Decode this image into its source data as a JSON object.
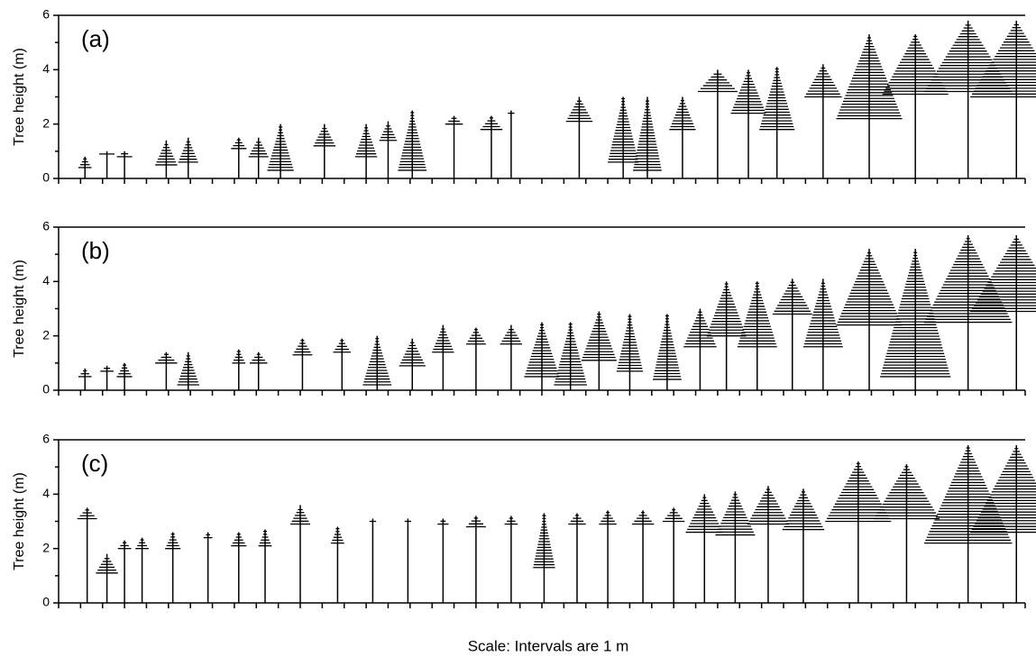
{
  "caption": "Scale: Intervals are 1 m",
  "chart_data": [
    {
      "type": "tree-profile",
      "label": "(a)",
      "y_label": "Tree height (m)",
      "ylim": [
        0,
        6
      ],
      "yticks": [
        0,
        2,
        4,
        6
      ],
      "yminor_ticks": [
        1,
        3,
        5
      ],
      "xlim": [
        0,
        44
      ],
      "xticks": [
        0,
        1,
        2,
        3,
        4,
        5,
        6,
        7,
        8,
        9,
        10,
        11,
        12,
        13,
        14,
        15,
        16,
        17,
        18,
        19,
        20,
        21,
        22,
        23,
        24,
        25,
        26,
        27,
        28,
        29,
        30,
        31,
        32,
        33,
        34,
        35,
        36,
        37,
        38,
        39,
        40,
        41,
        42,
        43,
        44
      ],
      "trees": [
        {
          "x": 1.2,
          "height": 0.8,
          "crown_base": 0.4,
          "crown_width": 0.6
        },
        {
          "x": 2.2,
          "height": 1.0,
          "crown_base": 0.9,
          "crown_width": 0.7
        },
        {
          "x": 3.0,
          "height": 1.0,
          "crown_base": 0.8,
          "crown_width": 0.7
        },
        {
          "x": 4.9,
          "height": 1.4,
          "crown_base": 0.5,
          "crown_width": 1.0
        },
        {
          "x": 5.9,
          "height": 1.5,
          "crown_base": 0.6,
          "crown_width": 0.9
        },
        {
          "x": 8.2,
          "height": 1.5,
          "crown_base": 1.1,
          "crown_width": 0.7
        },
        {
          "x": 9.1,
          "height": 1.5,
          "crown_base": 0.8,
          "crown_width": 0.9
        },
        {
          "x": 10.1,
          "height": 2.0,
          "crown_base": 0.3,
          "crown_width": 1.2
        },
        {
          "x": 12.1,
          "height": 2.0,
          "crown_base": 1.2,
          "crown_width": 1.0
        },
        {
          "x": 14.0,
          "height": 2.0,
          "crown_base": 0.8,
          "crown_width": 1.0
        },
        {
          "x": 15.0,
          "height": 2.1,
          "crown_base": 1.4,
          "crown_width": 0.8
        },
        {
          "x": 16.1,
          "height": 2.5,
          "crown_base": 0.3,
          "crown_width": 1.3
        },
        {
          "x": 18.0,
          "height": 2.3,
          "crown_base": 2.0,
          "crown_width": 0.8
        },
        {
          "x": 19.7,
          "height": 2.3,
          "crown_base": 1.8,
          "crown_width": 1.0
        },
        {
          "x": 20.6,
          "height": 2.5,
          "crown_base": 2.4,
          "crown_width": 0.3
        },
        {
          "x": 23.7,
          "height": 3.0,
          "crown_base": 2.1,
          "crown_width": 1.2
        },
        {
          "x": 25.7,
          "height": 3.0,
          "crown_base": 0.6,
          "crown_width": 1.4
        },
        {
          "x": 26.8,
          "height": 3.0,
          "crown_base": 0.3,
          "crown_width": 1.3
        },
        {
          "x": 28.4,
          "height": 3.0,
          "crown_base": 1.8,
          "crown_width": 1.2
        },
        {
          "x": 30.0,
          "height": 4.0,
          "crown_base": 3.2,
          "crown_width": 1.8
        },
        {
          "x": 31.4,
          "height": 4.0,
          "crown_base": 2.4,
          "crown_width": 1.6
        },
        {
          "x": 32.7,
          "height": 4.1,
          "crown_base": 1.8,
          "crown_width": 1.6
        },
        {
          "x": 34.8,
          "height": 4.2,
          "crown_base": 3.0,
          "crown_width": 1.7
        },
        {
          "x": 36.9,
          "height": 5.3,
          "crown_base": 2.2,
          "crown_width": 3.0
        },
        {
          "x": 39.0,
          "height": 5.3,
          "crown_base": 3.1,
          "crown_width": 3.0
        },
        {
          "x": 41.4,
          "height": 5.8,
          "crown_base": 3.2,
          "crown_width": 4.0
        },
        {
          "x": 43.6,
          "height": 5.8,
          "crown_base": 3.0,
          "crown_width": 4.2
        }
      ]
    },
    {
      "type": "tree-profile",
      "label": "(b)",
      "y_label": "Tree height (m)",
      "ylim": [
        0,
        6
      ],
      "yticks": [
        0,
        2,
        4,
        6
      ],
      "yminor_ticks": [
        1,
        3,
        5
      ],
      "xlim": [
        0,
        44
      ],
      "xticks": [
        0,
        1,
        2,
        3,
        4,
        5,
        6,
        7,
        8,
        9,
        10,
        11,
        12,
        13,
        14,
        15,
        16,
        17,
        18,
        19,
        20,
        21,
        22,
        23,
        24,
        25,
        26,
        27,
        28,
        29,
        30,
        31,
        32,
        33,
        34,
        35,
        36,
        37,
        38,
        39,
        40,
        41,
        42,
        43,
        44
      ],
      "trees": [
        {
          "x": 1.2,
          "height": 0.8,
          "crown_base": 0.5,
          "crown_width": 0.6
        },
        {
          "x": 2.2,
          "height": 0.9,
          "crown_base": 0.7,
          "crown_width": 0.6
        },
        {
          "x": 3.0,
          "height": 1.0,
          "crown_base": 0.5,
          "crown_width": 0.7
        },
        {
          "x": 4.9,
          "height": 1.4,
          "crown_base": 1.0,
          "crown_width": 1.0
        },
        {
          "x": 5.9,
          "height": 1.4,
          "crown_base": 0.2,
          "crown_width": 1.0
        },
        {
          "x": 8.2,
          "height": 1.5,
          "crown_base": 1.0,
          "crown_width": 0.6
        },
        {
          "x": 9.1,
          "height": 1.4,
          "crown_base": 1.0,
          "crown_width": 0.8
        },
        {
          "x": 11.1,
          "height": 1.9,
          "crown_base": 1.3,
          "crown_width": 0.9
        },
        {
          "x": 12.9,
          "height": 1.9,
          "crown_base": 1.4,
          "crown_width": 0.8
        },
        {
          "x": 14.5,
          "height": 2.0,
          "crown_base": 0.2,
          "crown_width": 1.3
        },
        {
          "x": 16.1,
          "height": 1.9,
          "crown_base": 0.9,
          "crown_width": 1.2
        },
        {
          "x": 17.5,
          "height": 2.4,
          "crown_base": 1.4,
          "crown_width": 1.0
        },
        {
          "x": 19.0,
          "height": 2.3,
          "crown_base": 1.7,
          "crown_width": 0.9
        },
        {
          "x": 20.6,
          "height": 2.4,
          "crown_base": 1.7,
          "crown_width": 1.0
        },
        {
          "x": 22.0,
          "height": 2.5,
          "crown_base": 0.5,
          "crown_width": 1.6
        },
        {
          "x": 23.3,
          "height": 2.5,
          "crown_base": 0.2,
          "crown_width": 1.5
        },
        {
          "x": 24.6,
          "height": 2.9,
          "crown_base": 1.1,
          "crown_width": 1.6
        },
        {
          "x": 26.0,
          "height": 2.8,
          "crown_base": 0.7,
          "crown_width": 1.2
        },
        {
          "x": 27.7,
          "height": 2.8,
          "crown_base": 0.4,
          "crown_width": 1.3
        },
        {
          "x": 29.2,
          "height": 3.0,
          "crown_base": 1.6,
          "crown_width": 1.5
        },
        {
          "x": 30.4,
          "height": 4.0,
          "crown_base": 2.0,
          "crown_width": 1.8
        },
        {
          "x": 31.8,
          "height": 4.0,
          "crown_base": 1.6,
          "crown_width": 1.8
        },
        {
          "x": 33.4,
          "height": 4.1,
          "crown_base": 2.8,
          "crown_width": 1.8
        },
        {
          "x": 34.8,
          "height": 4.1,
          "crown_base": 1.6,
          "crown_width": 1.8
        },
        {
          "x": 36.9,
          "height": 5.2,
          "crown_base": 2.4,
          "crown_width": 3.0
        },
        {
          "x": 39.0,
          "height": 5.2,
          "crown_base": 0.5,
          "crown_width": 3.2
        },
        {
          "x": 41.4,
          "height": 5.7,
          "crown_base": 2.5,
          "crown_width": 4.0
        },
        {
          "x": 43.6,
          "height": 5.7,
          "crown_base": 2.9,
          "crown_width": 4.2
        }
      ]
    },
    {
      "type": "tree-profile",
      "label": "(c)",
      "y_label": "Tree height (m)",
      "ylim": [
        0,
        6
      ],
      "yticks": [
        0,
        2,
        4,
        6
      ],
      "yminor_ticks": [
        1,
        3,
        5
      ],
      "xlim": [
        0,
        44
      ],
      "xticks": [
        0,
        1,
        2,
        3,
        4,
        5,
        6,
        7,
        8,
        9,
        10,
        11,
        12,
        13,
        14,
        15,
        16,
        17,
        18,
        19,
        20,
        21,
        22,
        23,
        24,
        25,
        26,
        27,
        28,
        29,
        30,
        31,
        32,
        33,
        34,
        35,
        36,
        37,
        38,
        39,
        40,
        41,
        42,
        43,
        44
      ],
      "trees": [
        {
          "x": 1.3,
          "height": 3.5,
          "crown_base": 3.1,
          "crown_width": 0.9
        },
        {
          "x": 2.2,
          "height": 1.8,
          "crown_base": 1.1,
          "crown_width": 1.0
        },
        {
          "x": 3.0,
          "height": 2.3,
          "crown_base": 2.0,
          "crown_width": 0.6
        },
        {
          "x": 3.8,
          "height": 2.4,
          "crown_base": 2.0,
          "crown_width": 0.6
        },
        {
          "x": 5.2,
          "height": 2.6,
          "crown_base": 2.0,
          "crown_width": 0.7
        },
        {
          "x": 6.8,
          "height": 2.6,
          "crown_base": 2.4,
          "crown_width": 0.4
        },
        {
          "x": 8.2,
          "height": 2.6,
          "crown_base": 2.1,
          "crown_width": 0.7
        },
        {
          "x": 9.4,
          "height": 2.7,
          "crown_base": 2.1,
          "crown_width": 0.6
        },
        {
          "x": 11.0,
          "height": 3.6,
          "crown_base": 2.9,
          "crown_width": 0.9
        },
        {
          "x": 12.7,
          "height": 2.8,
          "crown_base": 2.2,
          "crown_width": 0.6
        },
        {
          "x": 14.3,
          "height": 3.1,
          "crown_base": 3.0,
          "crown_width": 0.3
        },
        {
          "x": 15.9,
          "height": 3.1,
          "crown_base": 3.0,
          "crown_width": 0.3
        },
        {
          "x": 17.5,
          "height": 3.1,
          "crown_base": 2.9,
          "crown_width": 0.5
        },
        {
          "x": 19.0,
          "height": 3.2,
          "crown_base": 2.8,
          "crown_width": 0.9
        },
        {
          "x": 20.6,
          "height": 3.2,
          "crown_base": 2.9,
          "crown_width": 0.6
        },
        {
          "x": 22.1,
          "height": 3.3,
          "crown_base": 1.3,
          "crown_width": 1.0
        },
        {
          "x": 23.6,
          "height": 3.3,
          "crown_base": 2.9,
          "crown_width": 0.8
        },
        {
          "x": 25.0,
          "height": 3.4,
          "crown_base": 2.9,
          "crown_width": 0.8
        },
        {
          "x": 26.6,
          "height": 3.4,
          "crown_base": 2.9,
          "crown_width": 1.0
        },
        {
          "x": 28.0,
          "height": 3.5,
          "crown_base": 3.0,
          "crown_width": 1.0
        },
        {
          "x": 29.4,
          "height": 4.0,
          "crown_base": 2.6,
          "crown_width": 1.7
        },
        {
          "x": 30.8,
          "height": 4.1,
          "crown_base": 2.5,
          "crown_width": 1.8
        },
        {
          "x": 32.3,
          "height": 4.3,
          "crown_base": 2.9,
          "crown_width": 1.9
        },
        {
          "x": 33.9,
          "height": 4.2,
          "crown_base": 2.7,
          "crown_width": 1.9
        },
        {
          "x": 36.4,
          "height": 5.2,
          "crown_base": 3.0,
          "crown_width": 3.0
        },
        {
          "x": 38.6,
          "height": 5.1,
          "crown_base": 3.1,
          "crown_width": 3.0
        },
        {
          "x": 41.4,
          "height": 5.8,
          "crown_base": 2.2,
          "crown_width": 4.0
        },
        {
          "x": 43.6,
          "height": 5.8,
          "crown_base": 2.6,
          "crown_width": 4.2
        }
      ]
    }
  ]
}
